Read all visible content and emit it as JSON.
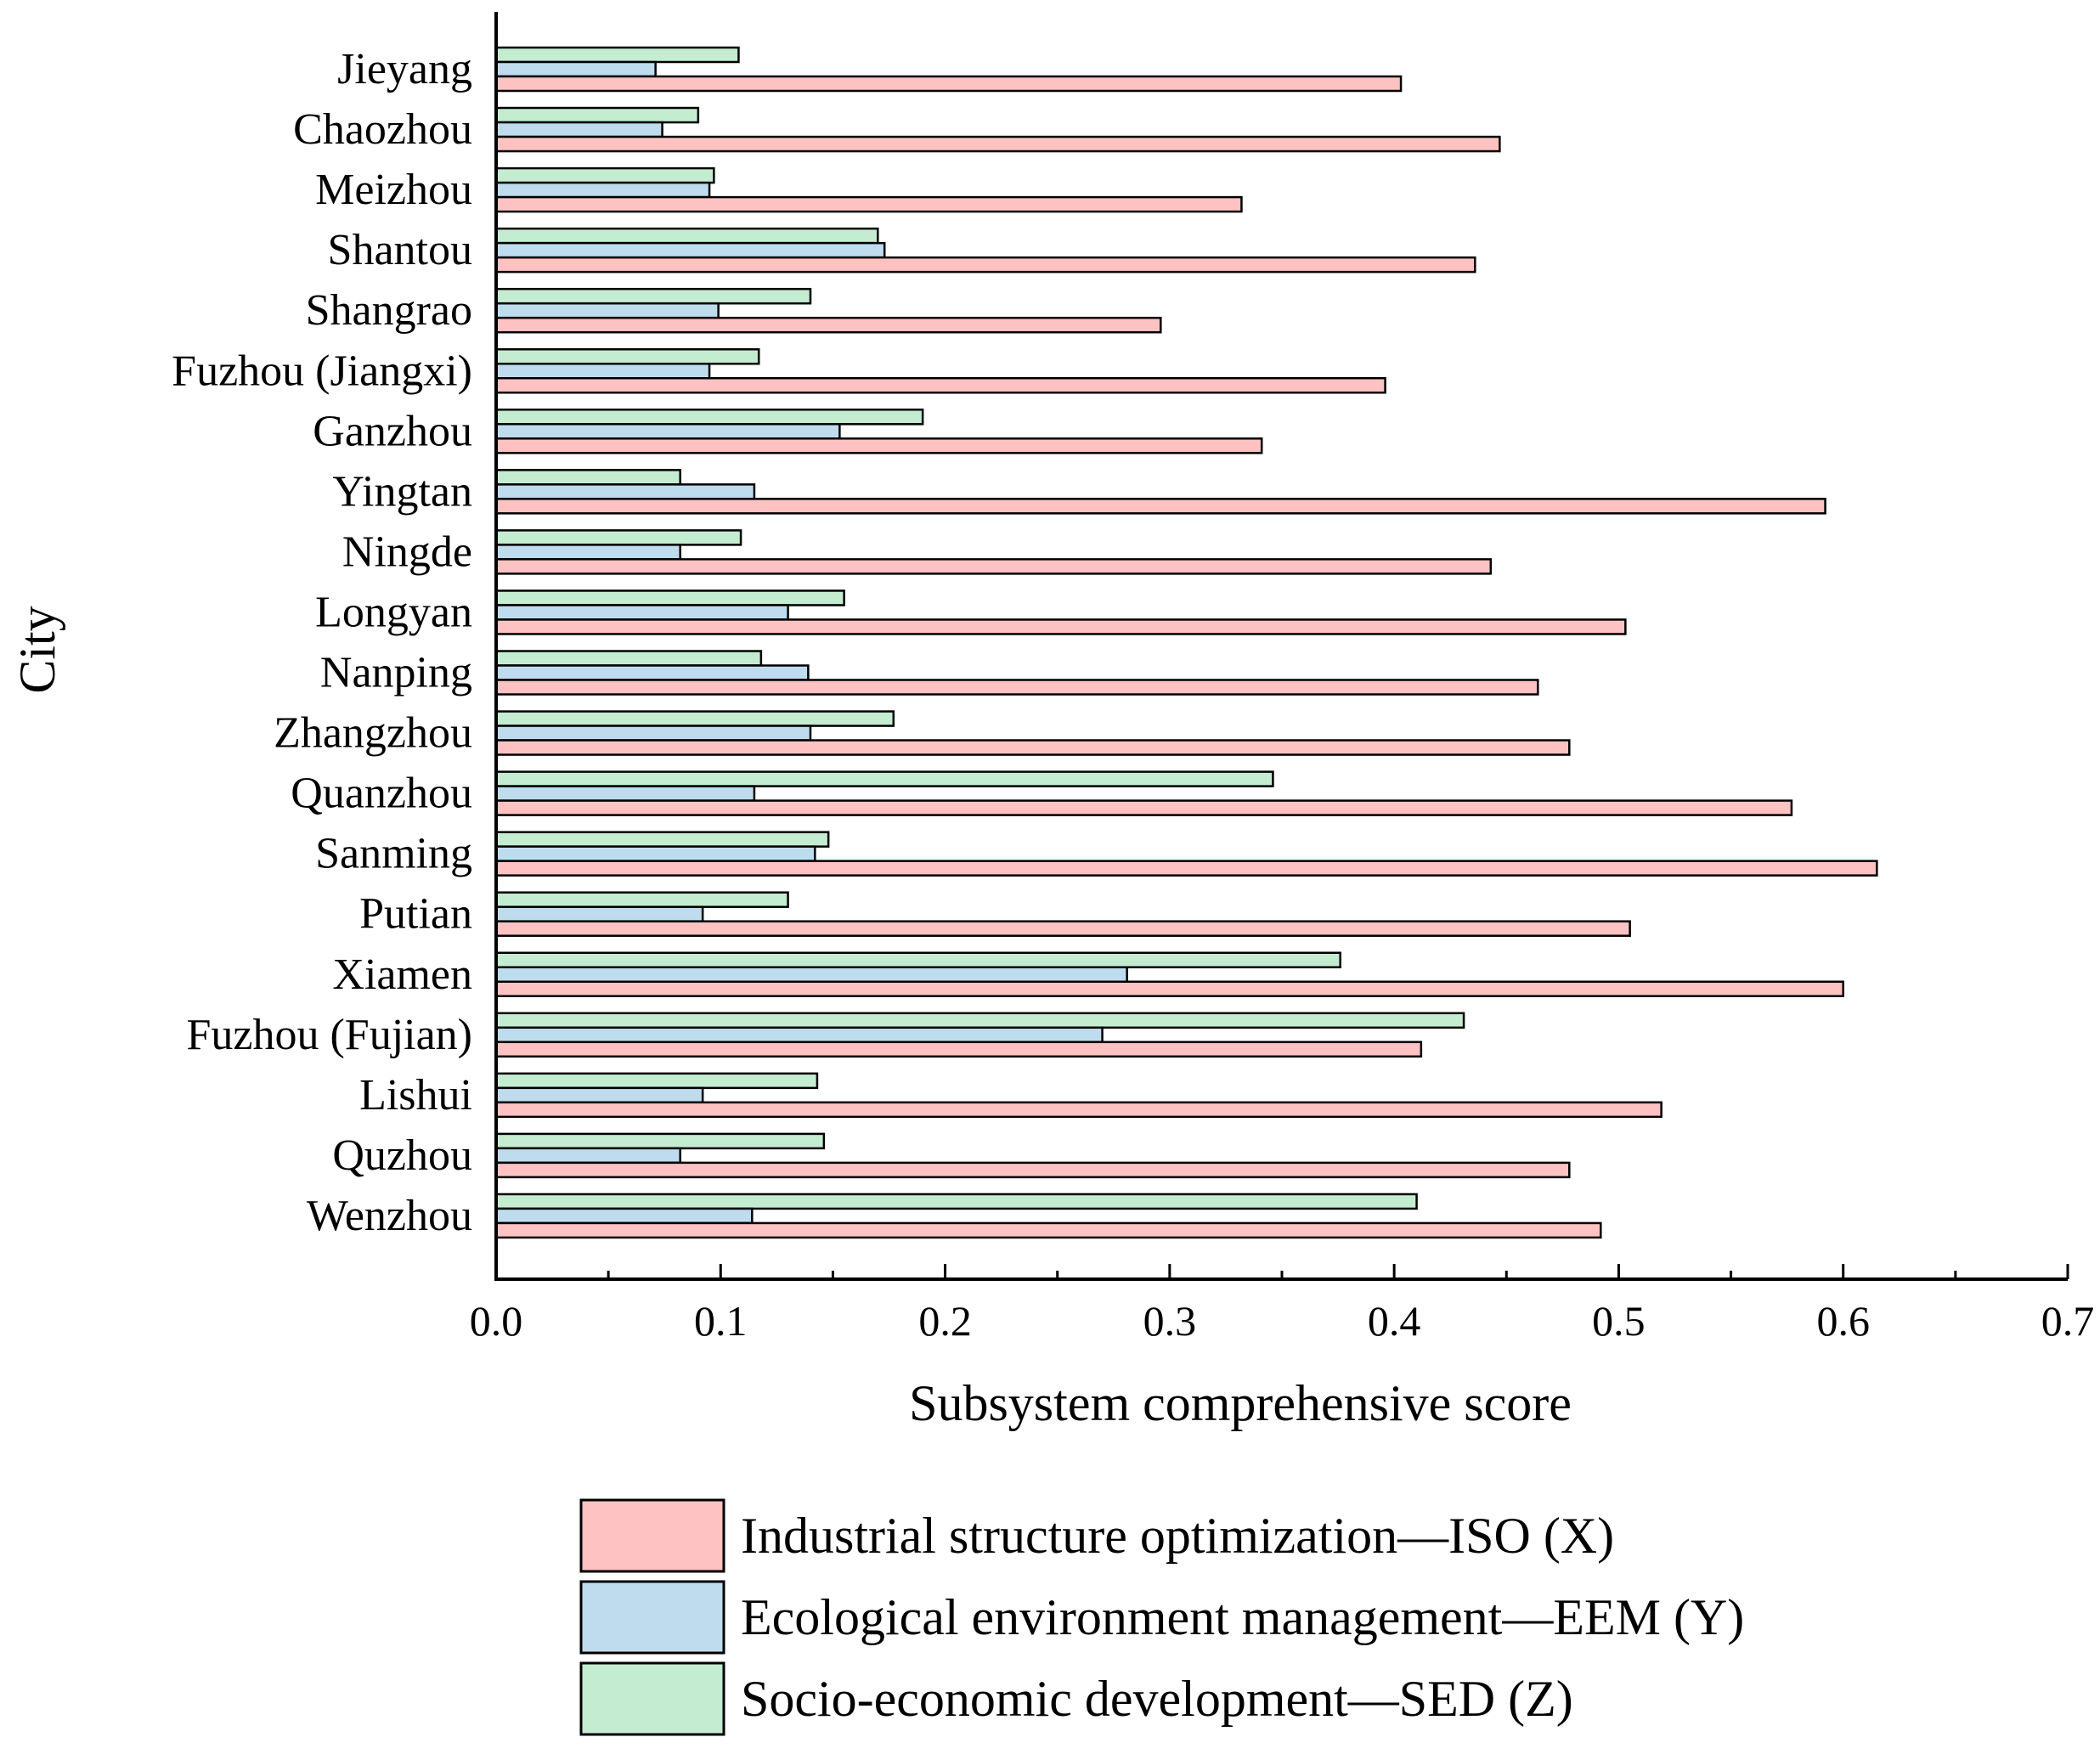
{
  "chart_data": {
    "type": "bar",
    "orientation": "horizontal",
    "xlabel": "Subsystem comprehensive score",
    "ylabel": "City",
    "xlim": [
      0,
      0.7
    ],
    "xticks": [
      "0.0",
      "0.1",
      "0.2",
      "0.3",
      "0.4",
      "0.5",
      "0.6",
      "0.7"
    ],
    "categories": [
      "Jieyang",
      "Chaozhou",
      "Meizhou",
      "Shantou",
      "Shangrao",
      "Fuzhou (Jiangxi)",
      "Ganzhou",
      "Yingtan",
      "Ningde",
      "Longyan",
      "Nanping",
      "Zhangzhou",
      "Quanzhou",
      "Sanming",
      "Putian",
      "Xiamen",
      "Fuzhou (Fujian)",
      "Lishui",
      "Quzhou",
      "Wenzhou"
    ],
    "series": [
      {
        "name": "Industrial structure optimization—ISO (X)",
        "color": "#ffc2c2",
        "values": [
          0.403,
          0.447,
          0.332,
          0.436,
          0.296,
          0.396,
          0.341,
          0.592,
          0.443,
          0.503,
          0.464,
          0.478,
          0.577,
          0.615,
          0.505,
          0.6,
          0.412,
          0.519,
          0.478,
          0.492
        ]
      },
      {
        "name": "Ecological environment management—EEM (Y)",
        "color": "#bfdcef",
        "values": [
          0.071,
          0.074,
          0.095,
          0.173,
          0.099,
          0.095,
          0.153,
          0.115,
          0.082,
          0.13,
          0.139,
          0.14,
          0.115,
          0.142,
          0.092,
          0.281,
          0.27,
          0.092,
          0.082,
          0.114
        ]
      },
      {
        "name": "Socio-economic development—SED (Z)",
        "color": "#c4ecd1",
        "values": [
          0.108,
          0.09,
          0.097,
          0.17,
          0.14,
          0.117,
          0.19,
          0.082,
          0.109,
          0.155,
          0.118,
          0.177,
          0.346,
          0.148,
          0.13,
          0.376,
          0.431,
          0.143,
          0.146,
          0.41
        ]
      }
    ],
    "legend_position": "bottom-right"
  }
}
